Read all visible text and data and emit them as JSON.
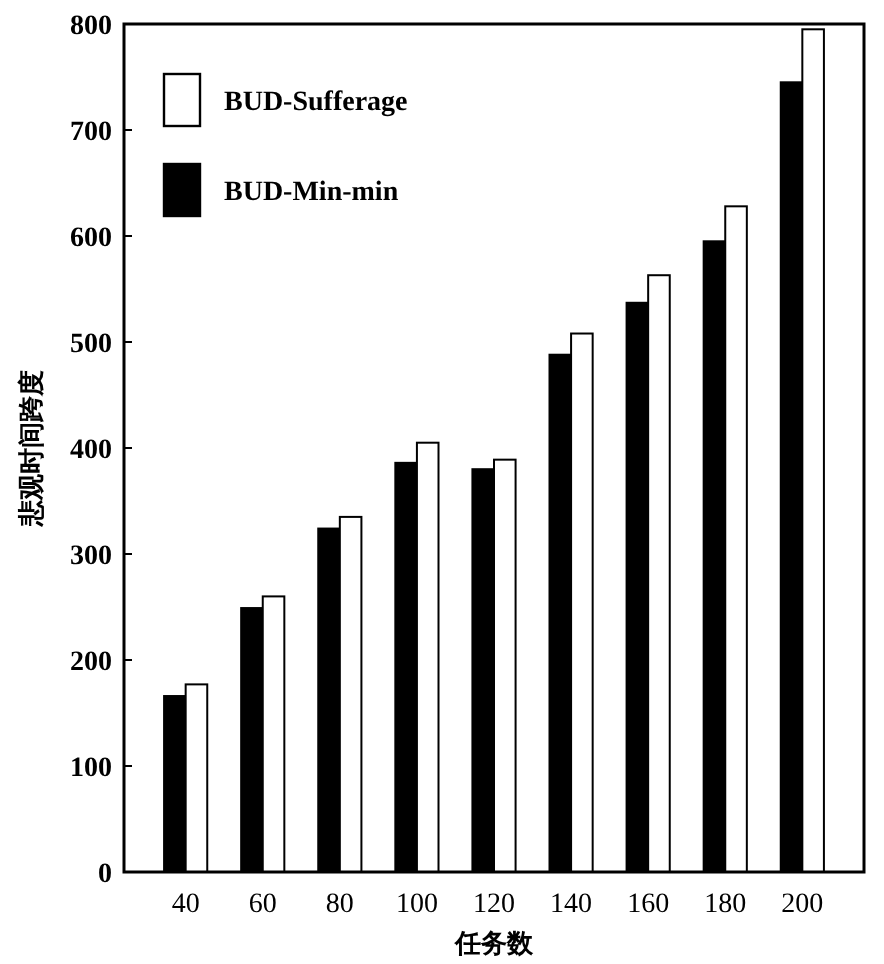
{
  "chart_data": {
    "type": "bar",
    "xlabel": "任务数",
    "ylabel": "悲观时间跨度",
    "categories": [
      "40",
      "60",
      "80",
      "100",
      "120",
      "140",
      "160",
      "180",
      "200"
    ],
    "series": [
      {
        "name": "BUD-Min-min",
        "color": "#000000",
        "values": [
          166,
          249,
          324,
          386,
          380,
          488,
          537,
          595,
          745
        ]
      },
      {
        "name": "BUD-Sufferage",
        "color": "#ffffff",
        "values": [
          177,
          260,
          335,
          405,
          389,
          508,
          563,
          628,
          795
        ]
      }
    ],
    "ylim": [
      0,
      800
    ],
    "yticks": [
      0,
      100,
      200,
      300,
      400,
      500,
      600,
      700,
      800
    ],
    "legend": "top left",
    "grid": false
  }
}
